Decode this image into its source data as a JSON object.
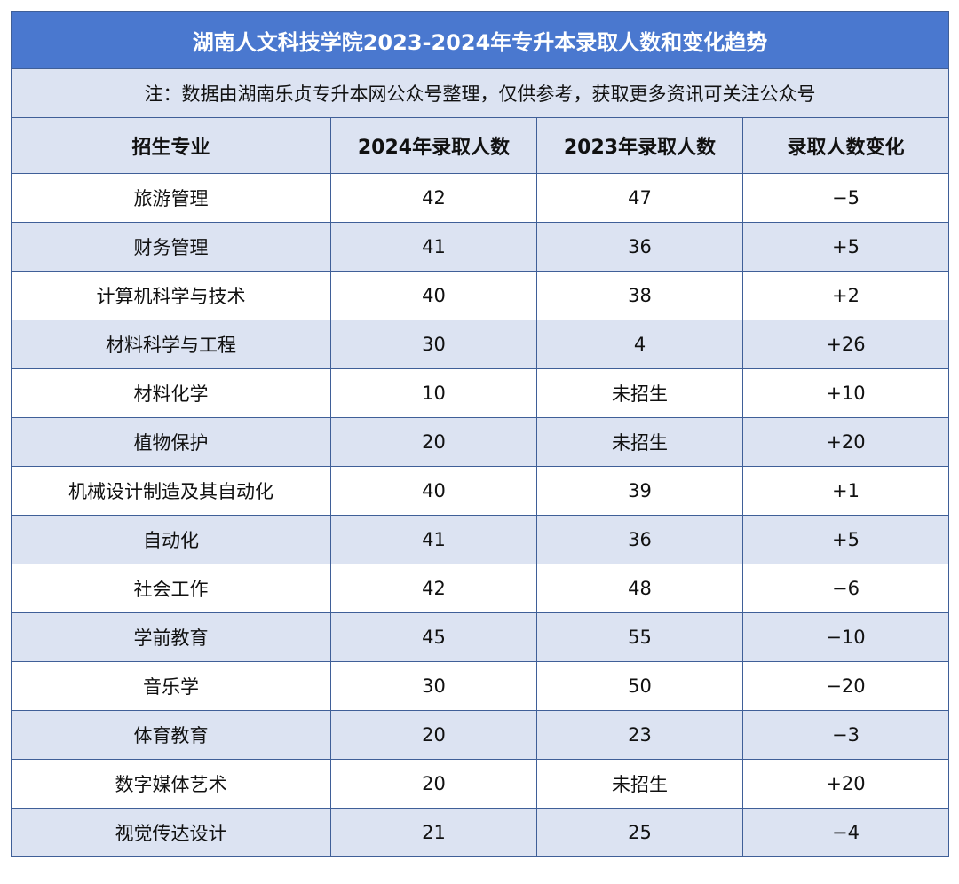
{
  "title": "湖南人文科技学院2023-2024年专升本录取人数和变化趋势",
  "note": "注：数据由湖南乐贞专升本网公众号整理，仅供参考，获取更多资讯可关注公众号",
  "headers": [
    "招生专业",
    "2024年录取人数",
    "2023年录取人数",
    "录取人数变化"
  ],
  "rows": [
    [
      "旅游管理",
      "42",
      "47",
      "−5"
    ],
    [
      "财务管理",
      "41",
      "36",
      "+5"
    ],
    [
      "计算机科学与技术",
      "40",
      "38",
      "+2"
    ],
    [
      "材料科学与工程",
      "30",
      "4",
      "+26"
    ],
    [
      "材料化学",
      "10",
      "未招生",
      "+10"
    ],
    [
      "植物保护",
      "20",
      "未招生",
      "+20"
    ],
    [
      "机械设计制造及其自动化",
      "40",
      "39",
      "+1"
    ],
    [
      "自动化",
      "41",
      "36",
      "+5"
    ],
    [
      "社会工作",
      "42",
      "48",
      "−6"
    ],
    [
      "学前教育",
      "45",
      "55",
      "−10"
    ],
    [
      "音乐学",
      "30",
      "50",
      "−20"
    ],
    [
      "体育教育",
      "20",
      "23",
      "−3"
    ],
    [
      "数字媒体艺术",
      "20",
      "未招生",
      "+20"
    ],
    [
      "视觉传达设计",
      "21",
      "25",
      "−4"
    ]
  ]
}
